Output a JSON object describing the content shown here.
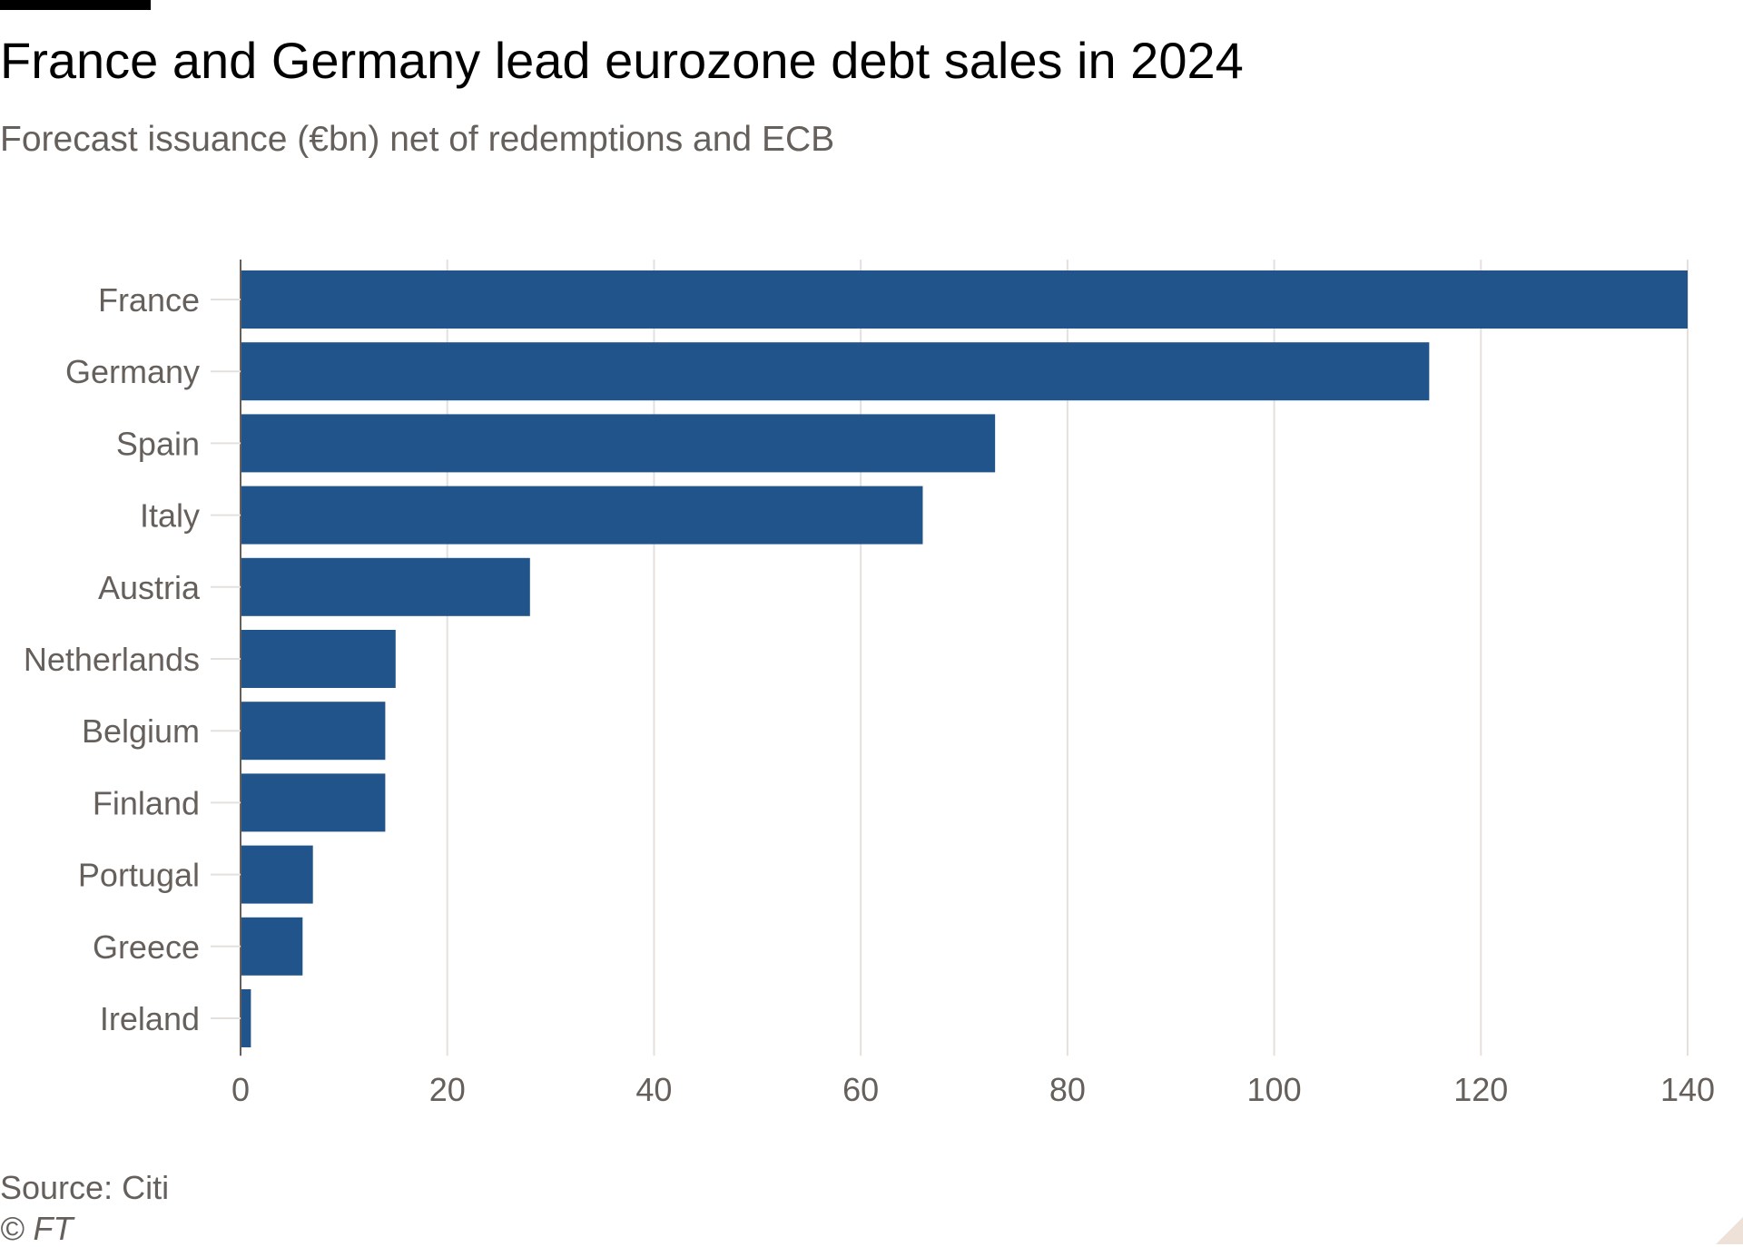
{
  "header": {
    "title": "France and Germany lead eurozone debt sales in 2024",
    "subtitle": "Forecast issuance (€bn) net of redemptions and ECB"
  },
  "footer": {
    "source": "Source: Citi",
    "credit": "© FT"
  },
  "colors": {
    "bar": "#21548a",
    "grid": "#e6e0dc",
    "axis": "#66605c",
    "text": "#66605c"
  },
  "chart_data": {
    "type": "bar",
    "orientation": "horizontal",
    "categories": [
      "France",
      "Germany",
      "Spain",
      "Italy",
      "Austria",
      "Netherlands",
      "Belgium",
      "Finland",
      "Portugal",
      "Greece",
      "Ireland"
    ],
    "values": [
      140,
      115,
      73,
      66,
      28,
      15,
      14,
      14,
      7,
      6,
      1
    ],
    "xlim": [
      0,
      140
    ],
    "xticks": [
      0,
      20,
      40,
      60,
      80,
      100,
      120,
      140
    ],
    "grid": true,
    "legend": "none"
  }
}
